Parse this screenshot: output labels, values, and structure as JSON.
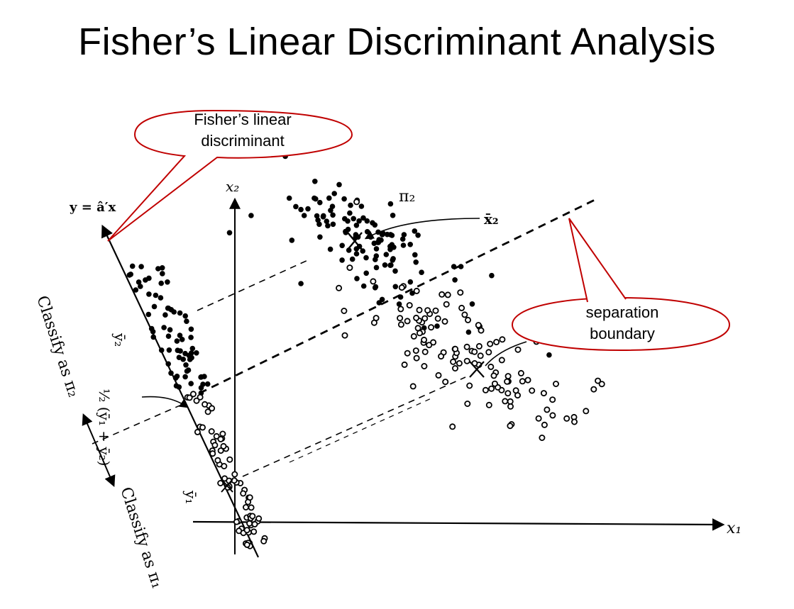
{
  "title": "Fisher’s Linear Discriminant Analysis",
  "callouts": {
    "fisher": {
      "line1": "Fisher’s linear",
      "line2": "discriminant"
    },
    "boundary": {
      "line1": "separation",
      "line2": "boundary"
    }
  },
  "labels": {
    "y_axis_eq": "y = â′x",
    "x2_axis": "x₂",
    "x1_axis": "x₁",
    "pi2": "π₂",
    "xbar2": "x̄₂",
    "ybar2": "ȳ₂",
    "ybar1": "ȳ₁",
    "midpoint": "½ (ȳ₁ + ȳ₂)",
    "classify_pi2": "Classify as π₂",
    "classify_pi1": "Classify as π₁"
  },
  "colors": {
    "callout_stroke": "#c00000",
    "ink": "#000000",
    "background": "#ffffff"
  }
}
